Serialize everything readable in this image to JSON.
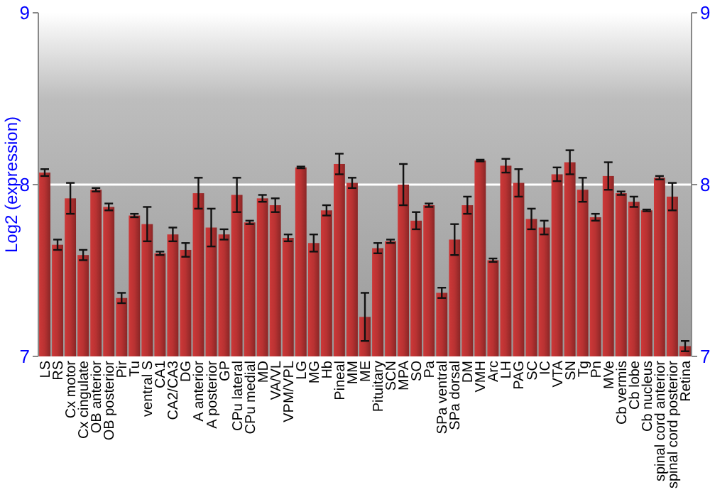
{
  "chart_data": {
    "type": "bar",
    "ylabel": "Log2 (expression)",
    "categories": [
      "LS",
      "RS",
      "Cx motor",
      "Cx cingulate",
      "OB anterior",
      "OB posterior",
      "Pir",
      "Tu",
      "ventral S",
      "CA1",
      "CA2/CA3",
      "DG",
      "A anterior",
      "A posterior",
      "GP",
      "CPu lateral",
      "CPu medial",
      "MD",
      "VA/VL",
      "VPM/VPL",
      "LG",
      "MG",
      "Hb",
      "Pineal",
      "MM",
      "ME",
      "Pituitary",
      "SCN",
      "MPA",
      "SO",
      "Pa",
      "SPa ventral",
      "SPa dorsal",
      "DM",
      "VMH",
      "Arc",
      "LH",
      "PAG",
      "SC",
      "IC",
      "VTA",
      "SN",
      "Tg",
      "Pn",
      "MVe",
      "Cb vermis",
      "Cb lobe",
      "Cb nucleus",
      "spinal cord anterior",
      "spinal cord posterior",
      "Retina"
    ],
    "values": [
      8.07,
      7.65,
      7.92,
      7.59,
      7.97,
      7.87,
      7.34,
      7.82,
      7.77,
      7.6,
      7.71,
      7.62,
      7.95,
      7.75,
      7.71,
      7.94,
      7.78,
      7.92,
      7.88,
      7.69,
      8.1,
      7.66,
      7.85,
      8.12,
      8.01,
      7.23,
      7.63,
      7.67,
      8.0,
      7.79,
      7.88,
      7.37,
      7.68,
      7.88,
      8.14,
      7.56,
      8.11,
      8.01,
      7.8,
      7.75,
      8.06,
      8.13,
      7.97,
      7.81,
      8.05,
      7.95,
      7.9,
      7.85,
      8.04,
      7.93,
      7.06
    ],
    "errors": [
      0.02,
      0.03,
      0.09,
      0.03,
      0.01,
      0.02,
      0.03,
      0.01,
      0.1,
      0.01,
      0.04,
      0.04,
      0.09,
      0.11,
      0.03,
      0.1,
      0.01,
      0.02,
      0.04,
      0.02,
      0.005,
      0.05,
      0.03,
      0.06,
      0.03,
      0.14,
      0.03,
      0.01,
      0.12,
      0.05,
      0.01,
      0.03,
      0.09,
      0.05,
      0.005,
      0.01,
      0.04,
      0.08,
      0.06,
      0.04,
      0.04,
      0.07,
      0.07,
      0.02,
      0.08,
      0.01,
      0.03,
      0.005,
      0.01,
      0.08,
      0.03
    ],
    "color": "#b83232",
    "ylim": [
      7,
      9
    ],
    "yticks": [
      7,
      8,
      9
    ],
    "y2lim": [
      7,
      9
    ],
    "y2ticks": [
      7,
      8,
      9
    ],
    "grid": "y"
  }
}
